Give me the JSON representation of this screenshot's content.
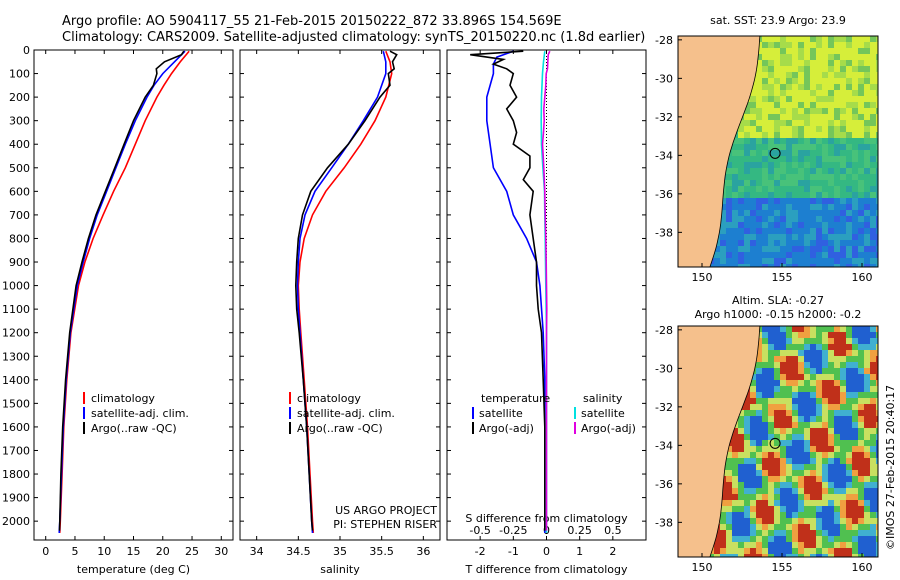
{
  "header": {
    "line1": "Argo profile: AO 5904117_55 21-Feb-2015 20150222_872 33.896S 154.569E",
    "line2": "Climatology: CARS2009. Satellite-adjusted climatology: synTS_20150220.nc (1.8d earlier)"
  },
  "colors": {
    "climatology": "#ff0000",
    "satellite": "#0000ff",
    "argo": "#000000",
    "sal_satellite": "#00e0e0",
    "sal_argo": "#e000e0",
    "land": "#f5c08c"
  },
  "chart_data": [
    {
      "id": "temperature",
      "type": "line",
      "xlabel": "temperature (deg C)",
      "xlim": [
        -2,
        32
      ],
      "ylim": [
        2080,
        0
      ],
      "xticks": [
        0,
        5,
        10,
        15,
        20,
        25,
        30
      ],
      "yticks": [
        0,
        100,
        200,
        300,
        400,
        500,
        600,
        700,
        800,
        900,
        1000,
        1100,
        1200,
        1300,
        1400,
        1500,
        1600,
        1700,
        1800,
        1900,
        2000
      ],
      "legend": [
        "climatology",
        "satellite-adj. clim.",
        "Argo(..raw -QC)"
      ],
      "series": [
        {
          "name": "climatology",
          "depth": [
            5,
            50,
            100,
            150,
            200,
            300,
            400,
            500,
            600,
            700,
            800,
            900,
            1000,
            1200,
            1400,
            1600,
            1800,
            2000,
            2050
          ],
          "values": [
            24.5,
            23.0,
            21.5,
            20.2,
            19.0,
            17.0,
            15.3,
            13.6,
            11.6,
            9.8,
            8.1,
            6.7,
            5.6,
            4.3,
            3.6,
            3.1,
            2.8,
            2.5,
            2.4
          ]
        },
        {
          "name": "satellite-adj. clim.",
          "depth": [
            5,
            50,
            100,
            150,
            200,
            300,
            400,
            500,
            600,
            700,
            800,
            900,
            1000,
            1200,
            1400,
            1600,
            1800,
            2000,
            2050
          ],
          "values": [
            23.8,
            22.0,
            20.0,
            18.5,
            17.3,
            15.3,
            13.6,
            12.0,
            10.4,
            8.8,
            7.5,
            6.4,
            5.4,
            4.2,
            3.5,
            3.0,
            2.7,
            2.4,
            2.3
          ]
        },
        {
          "name": "Argo(..raw -QC)",
          "depth": [
            5,
            20,
            50,
            80,
            100,
            150,
            200,
            300,
            400,
            500,
            600,
            700,
            800,
            900,
            1000,
            1200,
            1400,
            1600,
            1800,
            2000,
            2040
          ],
          "values": [
            23.6,
            23.2,
            20.3,
            18.9,
            19.0,
            18.4,
            17.0,
            15.0,
            13.4,
            11.8,
            10.2,
            8.6,
            7.3,
            6.2,
            5.2,
            4.1,
            3.4,
            2.9,
            2.6,
            2.4,
            2.35
          ]
        }
      ]
    },
    {
      "id": "salinity",
      "type": "line",
      "xlabel": "salinity",
      "xlim": [
        33.8,
        36.2
      ],
      "ylim": [
        2080,
        0
      ],
      "xticks": [
        34,
        34.5,
        35,
        35.5,
        36
      ],
      "legend": [
        "climatology",
        "satellite-adj. clim.",
        "Argo(..raw -QC)"
      ],
      "annotation": [
        "US ARGO PROJECT",
        "PI: STEPHEN RISER"
      ],
      "series": [
        {
          "name": "climatology",
          "depth": [
            5,
            50,
            100,
            200,
            300,
            400,
            500,
            600,
            700,
            800,
            900,
            1000,
            1100,
            1200,
            1400,
            1600,
            1800,
            2000,
            2050
          ],
          "values": [
            35.55,
            35.6,
            35.62,
            35.55,
            35.42,
            35.25,
            35.05,
            34.83,
            34.67,
            34.57,
            34.52,
            34.5,
            34.51,
            34.53,
            34.57,
            34.61,
            34.64,
            34.67,
            34.68
          ]
        },
        {
          "name": "satellite-adj. clim.",
          "depth": [
            5,
            50,
            100,
            200,
            300,
            400,
            500,
            600,
            700,
            800,
            900,
            1000,
            1100,
            1200,
            1400,
            1600,
            1800,
            2000,
            2050
          ],
          "values": [
            35.52,
            35.55,
            35.55,
            35.45,
            35.28,
            35.1,
            34.9,
            34.7,
            34.58,
            34.52,
            34.5,
            34.49,
            34.5,
            34.52,
            34.56,
            34.6,
            34.63,
            34.66,
            34.67
          ]
        },
        {
          "name": "Argo(..raw -QC)",
          "depth": [
            5,
            20,
            50,
            80,
            100,
            150,
            200,
            300,
            400,
            500,
            600,
            700,
            800,
            900,
            1000,
            1100,
            1200,
            1400,
            1600,
            1800,
            2000,
            2040
          ],
          "values": [
            35.6,
            35.68,
            35.63,
            35.65,
            35.58,
            35.6,
            35.48,
            35.3,
            35.1,
            34.85,
            34.65,
            34.55,
            34.5,
            34.48,
            34.47,
            34.48,
            34.51,
            34.56,
            34.6,
            34.63,
            34.66,
            34.67
          ]
        }
      ]
    },
    {
      "id": "difference",
      "type": "line",
      "xlabel": "T difference from climatology",
      "xlabel2": "S difference from climatology",
      "xlim": [
        -3,
        3
      ],
      "ylim": [
        2080,
        0
      ],
      "xticks": [
        -2,
        -1,
        0,
        1,
        2
      ],
      "xticks_s": [
        "-0.5",
        "-0.25",
        "0",
        "0.25",
        "0.5"
      ],
      "legend_titles": [
        "temperature",
        "salinity"
      ],
      "legend": [
        "satellite",
        "Argo(-adj)",
        "satellite",
        "Argo(-adj)"
      ],
      "series": [
        {
          "name": "T satellite",
          "depth": [
            5,
            30,
            60,
            100,
            200,
            300,
            400,
            500,
            600,
            700,
            800,
            900,
            1000,
            1200,
            1400,
            1600,
            1800,
            2000,
            2050
          ],
          "values": [
            -1.0,
            -1.5,
            -1.6,
            -1.6,
            -1.8,
            -1.8,
            -1.7,
            -1.6,
            -1.2,
            -1.0,
            -0.6,
            -0.3,
            -0.2,
            -0.1,
            -0.05,
            -0.05,
            -0.05,
            -0.05,
            -0.05
          ]
        },
        {
          "name": "T Argo(-adj)",
          "depth": [
            5,
            20,
            40,
            60,
            80,
            100,
            150,
            200,
            250,
            300,
            350,
            400,
            450,
            500,
            550,
            600,
            700,
            800,
            900,
            1000,
            1100,
            1200,
            1400,
            1600,
            1800,
            2000,
            2040
          ],
          "values": [
            -0.7,
            -2.3,
            -1.3,
            -1.6,
            -1.2,
            -1.0,
            -1.1,
            -0.9,
            -1.2,
            -1.0,
            -0.9,
            -1.0,
            -0.5,
            -0.5,
            -0.7,
            -0.4,
            -0.5,
            -0.4,
            -0.3,
            -0.3,
            -0.25,
            -0.15,
            -0.1,
            -0.05,
            -0.05,
            -0.05,
            -0.05
          ]
        },
        {
          "name": "S satellite",
          "depth": [
            5,
            50,
            100,
            200,
            300,
            400,
            500,
            600,
            700,
            800,
            900,
            1000,
            1200,
            1400,
            1600,
            1800,
            2000,
            2050
          ],
          "values": [
            -0.05,
            -0.09,
            -0.12,
            -0.15,
            -0.16,
            -0.15,
            -0.11,
            -0.06,
            -0.05,
            -0.04,
            -0.03,
            -0.02,
            0,
            0,
            0,
            0,
            0,
            0
          ]
        },
        {
          "name": "S Argo(-adj)",
          "depth": [
            5,
            20,
            50,
            80,
            100,
            150,
            200,
            250,
            300,
            350,
            400,
            450,
            500,
            600,
            700,
            800,
            900,
            1000,
            1100,
            1200,
            1400,
            1600,
            1800,
            2000,
            2040
          ],
          "values": [
            0.1,
            0.05,
            0.04,
            0.03,
            -0.01,
            -0.02,
            -0.05,
            -0.08,
            -0.07,
            -0.09,
            -0.12,
            -0.1,
            -0.08,
            -0.05,
            -0.04,
            -0.02,
            -0.01,
            0,
            0.01,
            0,
            0,
            0,
            0,
            0,
            0
          ]
        }
      ]
    }
  ],
  "maps": [
    {
      "id": "sst",
      "title": "sat. SST: 23.9 Argo: 23.9",
      "xticks": [
        150,
        155,
        160
      ],
      "yticks": [
        -28,
        -30,
        -32,
        -34,
        -36,
        -38
      ],
      "xlim": [
        148.5,
        161
      ],
      "ylim": [
        -39.8,
        -27.8
      ],
      "marker": [
        154.569,
        -33.896
      ]
    },
    {
      "id": "sla",
      "title": "Altim. SLA: -0.27",
      "subtitle": "Argo h1000: -0.15 h2000: -0.2",
      "xticks": [
        150,
        155,
        160
      ],
      "yticks": [
        -28,
        -30,
        -32,
        -34,
        -36,
        -38
      ],
      "xlim": [
        148.5,
        161
      ],
      "ylim": [
        -39.8,
        -27.8
      ],
      "marker": [
        154.569,
        -33.896
      ]
    }
  ],
  "credit": "©IMOS 27-Feb-2015 20:40:17"
}
